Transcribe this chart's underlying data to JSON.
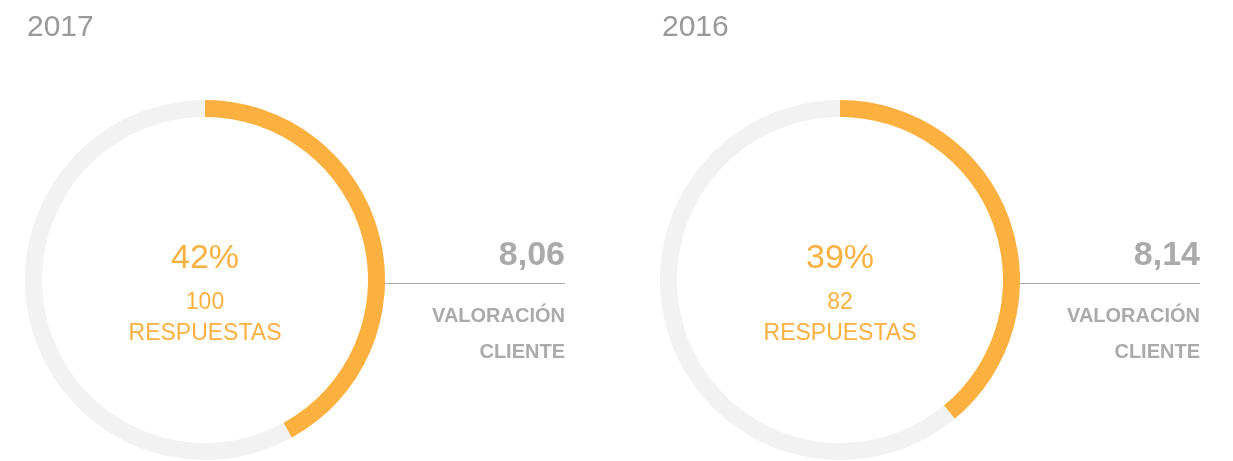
{
  "chart_data": [
    {
      "type": "donut",
      "title": "2017",
      "categories": [
        null,
        null
      ],
      "values": [
        42,
        58
      ],
      "colors": [
        "#fbb040",
        "#f2f2f2"
      ],
      "value_labels": [
        "42%",
        null
      ],
      "annotations": [
        "100",
        "RESPUESTAS",
        "8,06",
        "VALORACIÓN",
        "CLIENTE"
      ]
    },
    {
      "type": "donut",
      "title": "2016",
      "categories": [
        null,
        null
      ],
      "values": [
        39,
        61
      ],
      "colors": [
        "#fbb040",
        "#f2f2f2"
      ],
      "value_labels": [
        "39%",
        null
      ],
      "annotations": [
        "82",
        "RESPUESTAS",
        "8,14",
        "VALORACIÓN",
        "CLIENTE"
      ]
    }
  ]
}
